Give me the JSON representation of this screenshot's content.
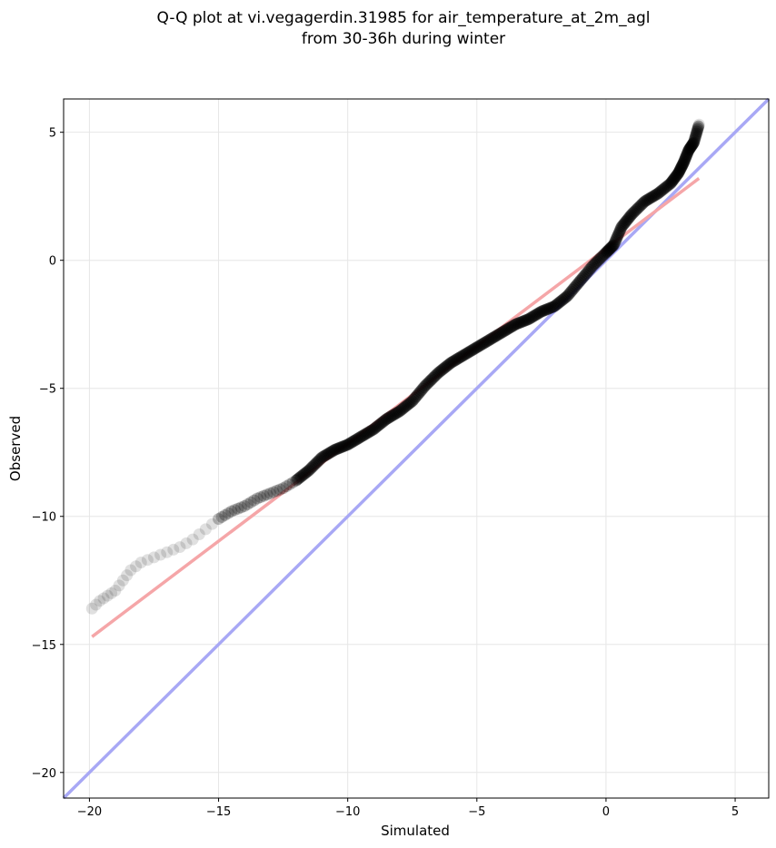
{
  "chart_data": {
    "type": "scatter",
    "title": [
      "Q-Q plot at vi.vegagerdin.31985 for air_temperature_at_2m_agl",
      "from 30-36h during winter"
    ],
    "xlabel": "Simulated",
    "ylabel": "Observed",
    "xlim": [
      -21,
      6.3
    ],
    "ylim": [
      -21,
      6.3
    ],
    "x_ticks": [
      -20,
      -15,
      -10,
      -5,
      0,
      5
    ],
    "x_tick_labels": [
      "−20",
      "−15",
      "−10",
      "−5",
      "0",
      "5"
    ],
    "y_ticks": [
      -20,
      -15,
      -10,
      -5,
      0,
      5
    ],
    "y_tick_labels": [
      "−20",
      "−15",
      "−10",
      "−5",
      "0",
      "5"
    ],
    "grid": true,
    "quantile_curve": {
      "x": [
        -19.9,
        -19.6,
        -19.3,
        -19.0,
        -18.7,
        -18.4,
        -18.0,
        -17.5,
        -17.0,
        -16.5,
        -16.0,
        -15.5,
        -15.0,
        -14.5,
        -14.0,
        -13.5,
        -13.0,
        -12.5,
        -12.0,
        -11.5,
        -11.0,
        -10.5,
        -10.0,
        -9.5,
        -9.0,
        -8.5,
        -8.0,
        -7.5,
        -7.0,
        -6.5,
        -6.0,
        -5.5,
        -5.0,
        -4.5,
        -4.0,
        -3.5,
        -3.0,
        -2.5,
        -2.0,
        -1.5,
        -1.0,
        -0.5,
        0.0,
        0.3,
        0.6,
        1.0,
        1.5,
        2.0,
        2.5,
        2.8,
        3.0,
        3.2,
        3.4,
        3.6
      ],
      "y": [
        -13.6,
        -13.3,
        -13.1,
        -12.9,
        -12.5,
        -12.1,
        -11.8,
        -11.6,
        -11.4,
        -11.2,
        -10.9,
        -10.5,
        -10.1,
        -9.8,
        -9.6,
        -9.3,
        -9.1,
        -8.9,
        -8.6,
        -8.2,
        -7.7,
        -7.4,
        -7.2,
        -6.9,
        -6.6,
        -6.2,
        -5.9,
        -5.5,
        -4.9,
        -4.4,
        -4.0,
        -3.7,
        -3.4,
        -3.1,
        -2.8,
        -2.5,
        -2.3,
        -2.0,
        -1.8,
        -1.4,
        -0.8,
        -0.2,
        0.3,
        0.6,
        1.3,
        1.8,
        2.3,
        2.6,
        3.0,
        3.4,
        3.8,
        4.3,
        4.6,
        5.3
      ]
    },
    "reference_lines": {
      "identity": {
        "from": [
          -21,
          -21
        ],
        "to": [
          6.3,
          6.3
        ],
        "color": "#a8a8f5"
      },
      "fit": {
        "from": [
          -19.9,
          -14.7
        ],
        "to": [
          3.6,
          3.2
        ],
        "color": "#f5a6a8"
      }
    },
    "colors": {
      "points": "#000000",
      "fit_line": "#f5a6a8",
      "identity_line": "#a8a8f5",
      "grid": "#e6e6e6"
    }
  }
}
